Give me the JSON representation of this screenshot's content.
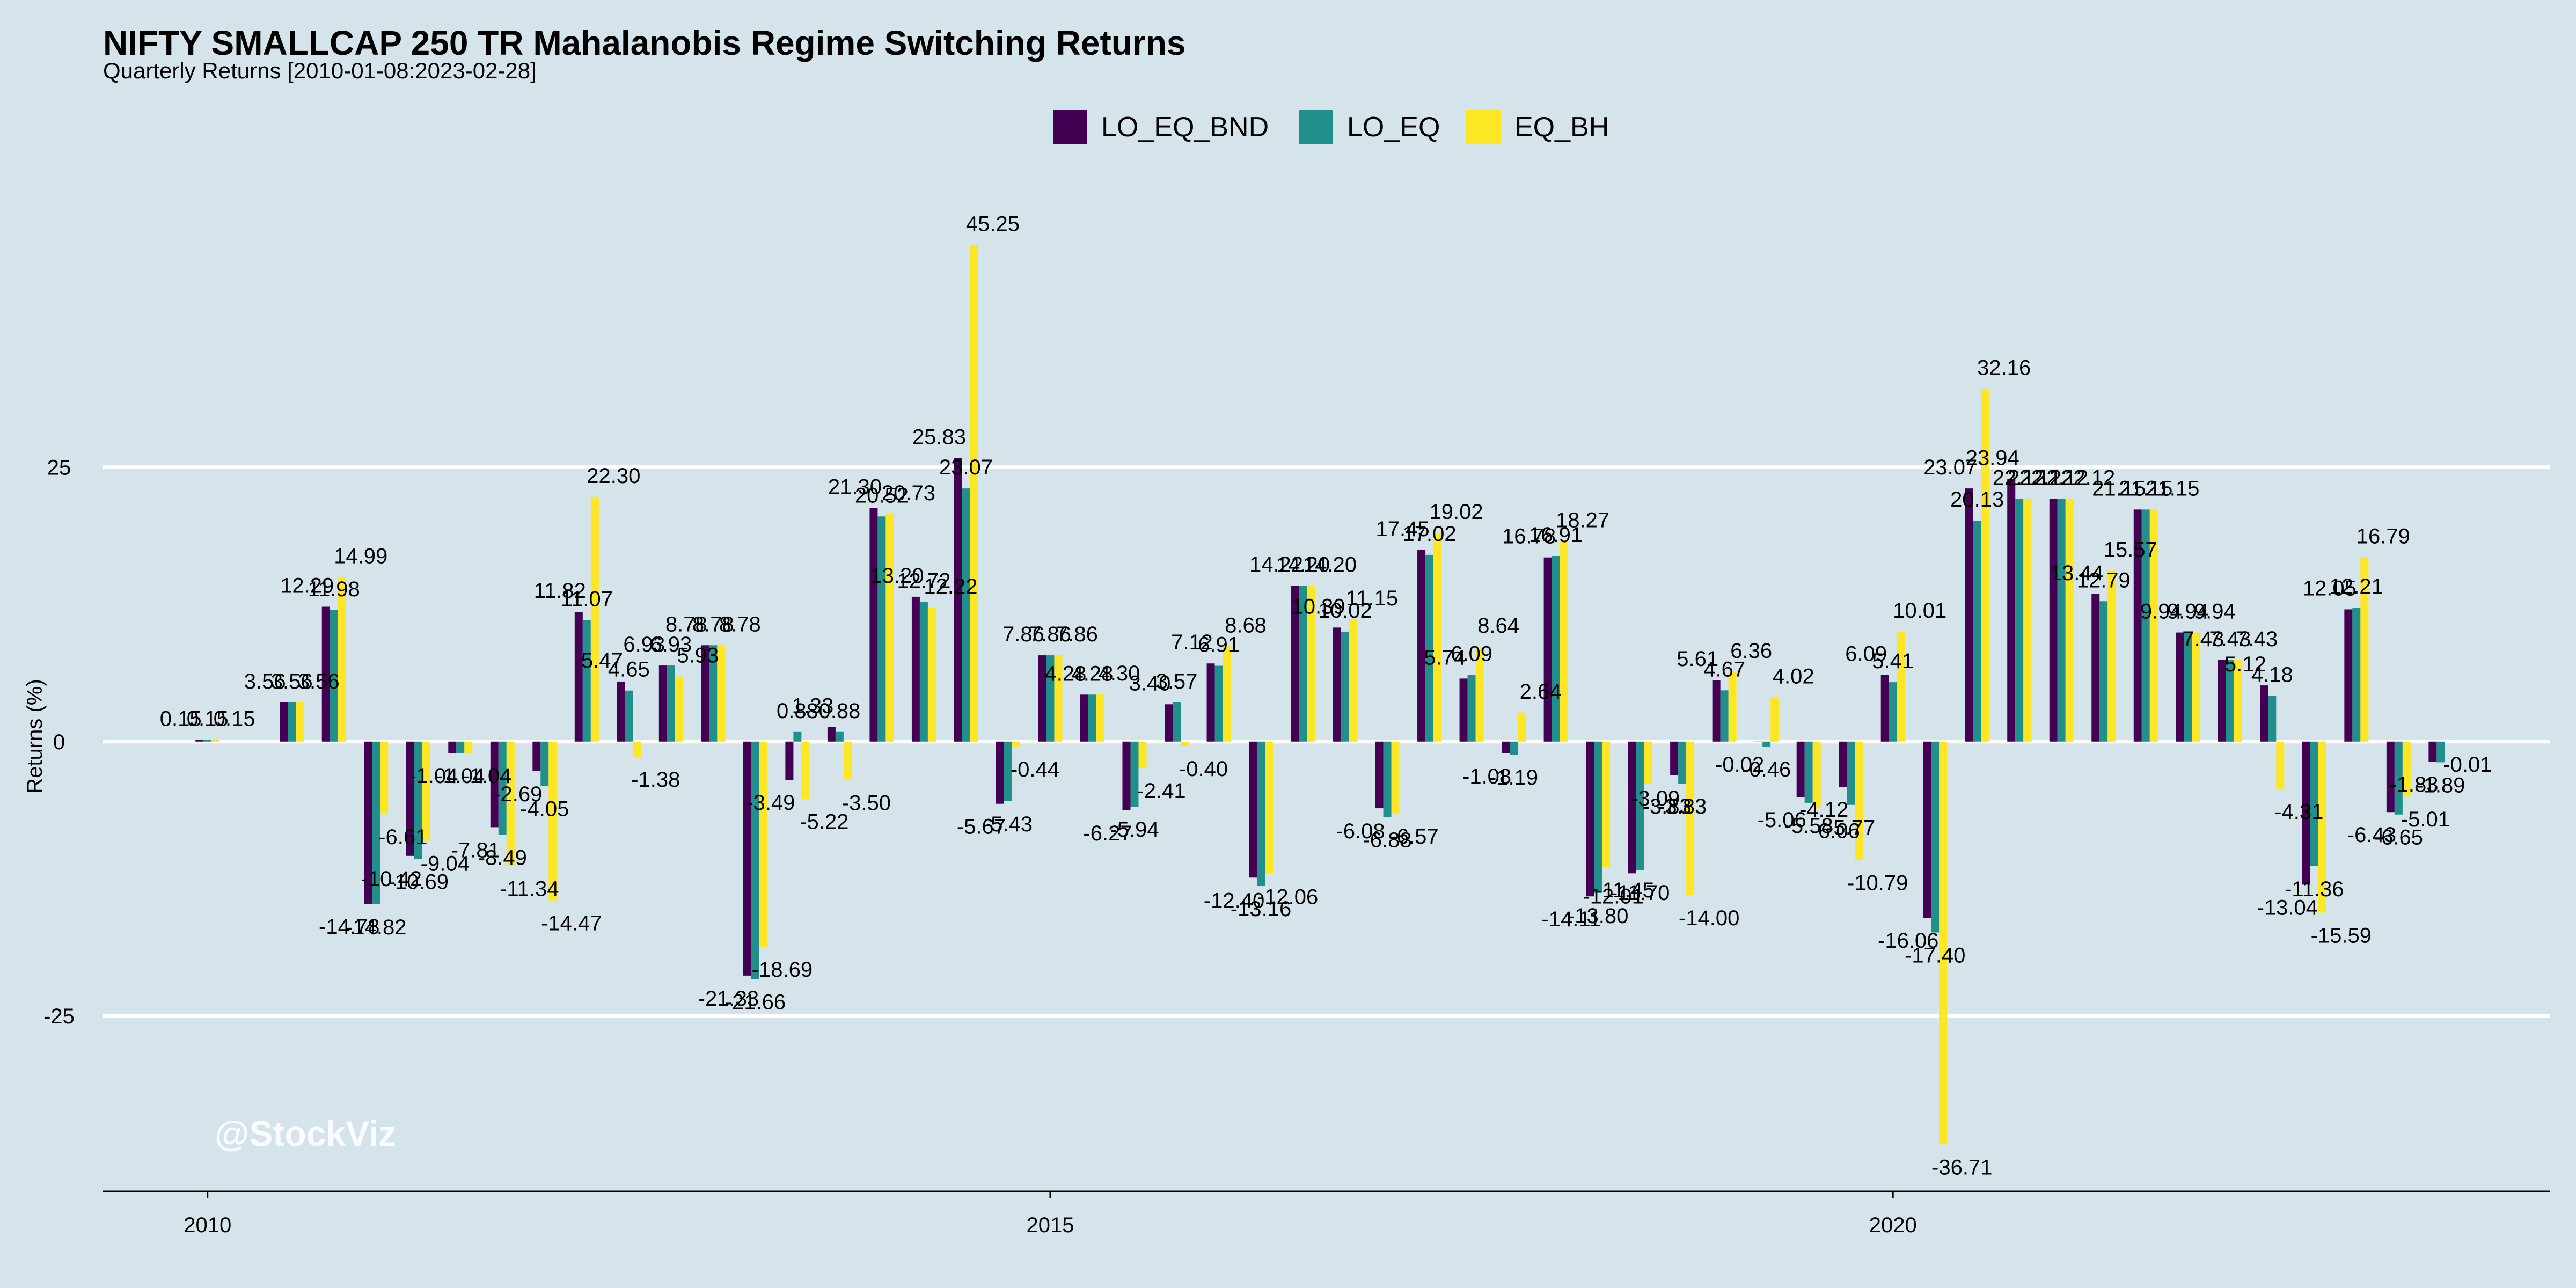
{
  "chart_data": {
    "type": "bar",
    "title": "NIFTY SMALLCAP 250 TR Mahalanobis Regime Switching Returns",
    "subtitle": "Quarterly Returns [2010-01-08:2023-02-28]",
    "ylabel": "Returns (%)",
    "xlabel": "",
    "ylim": [
      -41,
      49
    ],
    "xlim": [
      2009.38,
      2023.9
    ],
    "y_ticks": [
      -25,
      0,
      25
    ],
    "x_ticks": [
      2010,
      2015,
      2020
    ],
    "grid": "horizontal",
    "legend_position": "top",
    "watermark": "@StockViz",
    "series": [
      {
        "name": "LO_EQ_BND",
        "color": "#440154"
      },
      {
        "name": "LO_EQ",
        "color": "#21908d"
      },
      {
        "name": "EQ_BH",
        "color": "#fde725"
      }
    ],
    "quarters": [
      {
        "x": 2010.0,
        "values": [
          0.15,
          0.15,
          0.15
        ]
      },
      {
        "x": 2010.5,
        "values": [
          3.56,
          3.56,
          3.56
        ]
      },
      {
        "x": 2010.75,
        "values": [
          12.29,
          11.98,
          14.99
        ]
      },
      {
        "x": 2011.0,
        "values": [
          -14.78,
          -14.82,
          -6.61
        ]
      },
      {
        "x": 2011.25,
        "values": [
          -10.42,
          -10.69,
          -9.04
        ]
      },
      {
        "x": 2011.5,
        "values": [
          -1.04,
          -1.04,
          -1.04
        ]
      },
      {
        "x": 2011.75,
        "values": [
          -7.81,
          -8.49,
          -11.34
        ]
      },
      {
        "x": 2012.0,
        "values": [
          -2.69,
          -4.05,
          -14.47
        ]
      },
      {
        "x": 2012.25,
        "values": [
          11.82,
          11.07,
          22.3
        ]
      },
      {
        "x": 2012.5,
        "values": [
          5.47,
          4.65,
          -1.38
        ]
      },
      {
        "x": 2012.75,
        "values": [
          6.93,
          6.93,
          5.93
        ]
      },
      {
        "x": 2013.0,
        "values": [
          8.78,
          8.78,
          8.78
        ]
      },
      {
        "x": 2013.25,
        "values": [
          -21.33,
          -21.66,
          -18.69
        ]
      },
      {
        "x": 2013.5,
        "values": [
          -3.49,
          0.88,
          -5.22
        ]
      },
      {
        "x": 2013.75,
        "values": [
          1.33,
          0.88,
          -3.5
        ]
      },
      {
        "x": 2014.0,
        "values": [
          21.3,
          20.52,
          20.73
        ]
      },
      {
        "x": 2014.25,
        "values": [
          13.2,
          12.72,
          12.22
        ]
      },
      {
        "x": 2014.5,
        "values": [
          25.83,
          23.07,
          45.25
        ]
      },
      {
        "x": 2014.75,
        "values": [
          -5.67,
          -5.43,
          -0.44
        ]
      },
      {
        "x": 2015.0,
        "values": [
          7.86,
          7.86,
          7.86
        ]
      },
      {
        "x": 2015.25,
        "values": [
          4.28,
          4.28,
          4.3
        ]
      },
      {
        "x": 2015.5,
        "values": [
          -6.27,
          -5.94,
          -2.41
        ]
      },
      {
        "x": 2015.75,
        "values": [
          3.4,
          3.57,
          -0.4
        ]
      },
      {
        "x": 2016.0,
        "values": [
          7.12,
          6.91,
          8.68
        ]
      },
      {
        "x": 2016.25,
        "values": [
          -12.4,
          -13.16,
          -12.06
        ]
      },
      {
        "x": 2016.5,
        "values": [
          14.22,
          14.2,
          14.2
        ]
      },
      {
        "x": 2016.75,
        "values": [
          10.39,
          10.02,
          11.15
        ]
      },
      {
        "x": 2017.0,
        "values": [
          -6.08,
          -6.88,
          -6.57
        ]
      },
      {
        "x": 2017.25,
        "values": [
          17.45,
          17.02,
          19.02
        ]
      },
      {
        "x": 2017.5,
        "values": [
          5.74,
          6.09,
          8.64
        ]
      },
      {
        "x": 2017.75,
        "values": [
          -1.08,
          -1.19,
          2.64
        ]
      },
      {
        "x": 2018.0,
        "values": [
          16.78,
          16.91,
          18.27
        ]
      },
      {
        "x": 2018.25,
        "values": [
          -14.11,
          -13.8,
          -11.45
        ]
      },
      {
        "x": 2018.5,
        "values": [
          -12.01,
          -11.7,
          -3.83
        ]
      },
      {
        "x": 2018.75,
        "values": [
          -3.09,
          -3.83,
          -14.0
        ]
      },
      {
        "x": 2019.0,
        "values": [
          5.61,
          4.67,
          6.36
        ]
      },
      {
        "x": 2019.25,
        "values": [
          -0.02,
          -0.46,
          4.02
        ]
      },
      {
        "x": 2019.5,
        "values": [
          -5.06,
          -5.58,
          -6.06
        ]
      },
      {
        "x": 2019.75,
        "values": [
          -4.12,
          -5.77,
          -10.79
        ]
      },
      {
        "x": 2020.0,
        "values": [
          6.09,
          5.41,
          10.01
        ]
      },
      {
        "x": 2020.25,
        "values": [
          -16.06,
          -17.4,
          -36.71
        ]
      },
      {
        "x": 2020.5,
        "values": [
          23.07,
          20.13,
          32.16
        ]
      },
      {
        "x": 2020.75,
        "values": [
          23.94,
          22.12,
          22.12
        ]
      },
      {
        "x": 2021.0,
        "values": [
          22.12,
          22.12,
          22.12
        ]
      },
      {
        "x": 2021.25,
        "values": [
          13.44,
          12.79,
          15.57
        ]
      },
      {
        "x": 2021.5,
        "values": [
          21.15,
          21.15,
          21.15
        ]
      },
      {
        "x": 2021.75,
        "values": [
          9.94,
          9.94,
          9.94
        ]
      },
      {
        "x": 2022.0,
        "values": [
          7.43,
          7.43,
          7.43
        ]
      },
      {
        "x": 2022.25,
        "values": [
          5.12,
          4.18,
          -4.31
        ]
      },
      {
        "x": 2022.5,
        "values": [
          -13.04,
          -11.36,
          -15.59
        ]
      },
      {
        "x": 2022.75,
        "values": [
          12.05,
          12.21,
          16.79
        ]
      },
      {
        "x": 2023.0,
        "values": [
          -6.43,
          -6.65,
          -5.01
        ]
      },
      {
        "x": 2023.25,
        "values": [
          -1.83,
          -1.89,
          -0.01
        ]
      }
    ]
  }
}
